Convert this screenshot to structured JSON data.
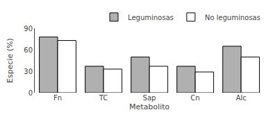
{
  "chart_data": {
    "type": "bar",
    "categories": [
      "Fn",
      "TC",
      "Sap",
      "Cn",
      "Alc"
    ],
    "series": [
      {
        "name": "Leguminosas",
        "color": "#b0b0b0",
        "values": [
          78,
          37,
          50,
          37,
          65
        ]
      },
      {
        "name": "No leguminosas",
        "color": "#ffffff",
        "values": [
          73,
          33,
          37,
          29,
          50
        ]
      }
    ],
    "xlabel": "Metabolito",
    "ylabel": "Especie (%)",
    "ylim": [
      0,
      90
    ],
    "yticks": [
      0,
      30,
      60,
      90
    ],
    "grid": false,
    "legend": "upper right"
  }
}
